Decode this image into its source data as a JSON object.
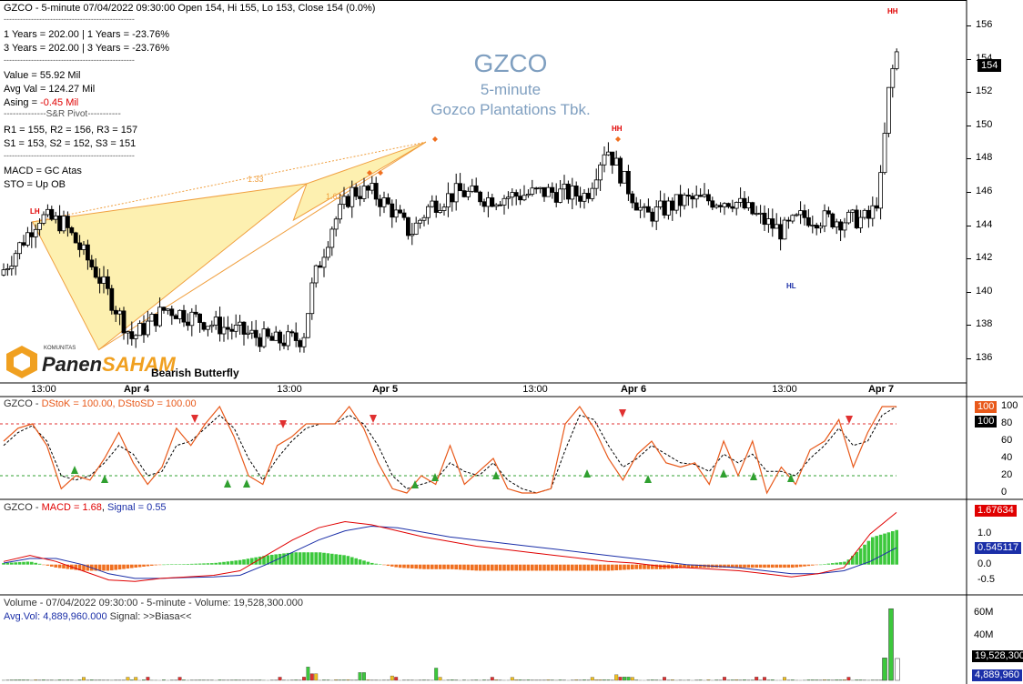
{
  "header": {
    "line": "GZCO - 5-minute 07/04/2022 09:30:00 Open 154, Hi 155, Lo 153, Close 154 (0.0%)"
  },
  "info_lines": [
    "------------------------------------------------",
    "1 Years   = 202.00  |  1 Years   = -23.76%",
    "3 Years   = 202.00  |  3 Years = -23.76%",
    "------------------------------------------------",
    "Value   = 55.92 Mil",
    "Avg Val = 124.27 Mil"
  ],
  "asing": {
    "label": "Asing  = ",
    "value": "-0.45 Mil"
  },
  "pivot": {
    "title": "--------------S&R Pivot-----------",
    "line1": "R1 = 155, R2 = 156, R3 = 157",
    "line2": "S1 = 153, S2 = 152, S3 = 151",
    "sep": "------------------------------------------------"
  },
  "signals": {
    "macd": "MACD =  GC Atas",
    "sto": "STO  =  Up OB"
  },
  "title_block": {
    "ticker": "GZCO",
    "interval": "5-minute",
    "company": "Gozco Plantations Tbk."
  },
  "pattern": {
    "label": "Bearish Butterfly",
    "ratio1": "1.33",
    "ratio2": "1.62"
  },
  "markers": {
    "lh": "LH",
    "hh1": "HH",
    "hh2": "HH",
    "hl": "HL"
  },
  "logo": {
    "small": "KOMUNITAS",
    "part1": "Panen",
    "part2": "SAHAM"
  },
  "price_axis": {
    "ticks": [
      "156",
      "154",
      "152",
      "150",
      "148",
      "146",
      "144",
      "142",
      "140",
      "138",
      "136"
    ],
    "last": "154"
  },
  "time_axis": [
    "13:00",
    "Apr 4",
    "13:00",
    "Apr 5",
    "13:00",
    "Apr 6",
    "13:00",
    "Apr 7"
  ],
  "stoch": {
    "head_ticker": "GZCO - ",
    "head_k": "DStoK = 100.00, DStoSD = 100.00",
    "ticks": [
      "100",
      "80",
      "60",
      "40",
      "20",
      "0"
    ],
    "badge_k": "100",
    "badge_d": "100"
  },
  "macd": {
    "head_ticker": "GZCO - ",
    "head_macd": "MACD = 1.68",
    "head_sep": ", ",
    "head_signal": "Signal = 0.55",
    "ticks": [
      "1.0",
      "0.5",
      "0.0",
      "-0.5"
    ],
    "badge_macd": "1.67634",
    "badge_signal": "0.545117"
  },
  "volume": {
    "line1": "Volume - 07/04/2022 09:30:00 - 5-minute  - Volume: 19,528,300.000",
    "line2_a": "Avg.Vol: 4,889,960.000",
    "line2_b": "  Signal: >>Biasa<<",
    "ticks": [
      "60M",
      "40M"
    ],
    "badge_vol": "19,528,300",
    "badge_avg": "4,889,960"
  },
  "colors": {
    "pattern_fill": "#fdf0b0",
    "pattern_line": "#f0a040",
    "stoch_k": "#e8591a",
    "macd_line": "#e00000",
    "signal_line": "#1b2fa8",
    "hist_pos": "#3cc83c",
    "hist_neg": "#f07020",
    "ob": "#e03030",
    "os": "#30a030"
  },
  "chart_data": {
    "type": "bar",
    "title": "GZCO",
    "subtitle": "5-minute",
    "price_ylim": [
      135,
      157
    ],
    "price_path": [
      {
        "x": 0,
        "y": 141
      },
      {
        "x": 4,
        "y": 144.5
      },
      {
        "x": 6.5,
        "y": 144.1
      },
      {
        "x": 10,
        "y": 141
      },
      {
        "x": 13.5,
        "y": 137.2
      },
      {
        "x": 17,
        "y": 139
      },
      {
        "x": 22,
        "y": 138
      },
      {
        "x": 28,
        "y": 137
      },
      {
        "x": 31,
        "y": 137.2
      },
      {
        "x": 32,
        "y": 140.5
      },
      {
        "x": 34,
        "y": 144
      },
      {
        "x": 36,
        "y": 146
      },
      {
        "x": 38,
        "y": 146
      },
      {
        "x": 40,
        "y": 145
      },
      {
        "x": 42,
        "y": 143.5
      },
      {
        "x": 44,
        "y": 145.2
      },
      {
        "x": 47,
        "y": 146
      },
      {
        "x": 50,
        "y": 145.6
      },
      {
        "x": 53,
        "y": 145.8
      },
      {
        "x": 56,
        "y": 146
      },
      {
        "x": 60,
        "y": 145.8
      },
      {
        "x": 62,
        "y": 148.8
      },
      {
        "x": 64,
        "y": 146.5
      },
      {
        "x": 66,
        "y": 144.5
      },
      {
        "x": 70,
        "y": 145.5
      },
      {
        "x": 75,
        "y": 145.5
      },
      {
        "x": 78,
        "y": 144.3
      },
      {
        "x": 80,
        "y": 143.6
      },
      {
        "x": 82,
        "y": 144.5
      },
      {
        "x": 86,
        "y": 144.3
      },
      {
        "x": 89,
        "y": 144.4
      },
      {
        "x": 90,
        "y": 146
      },
      {
        "x": 91,
        "y": 152.5
      },
      {
        "x": 91.8,
        "y": 154.5
      }
    ],
    "pattern_points_price": [
      {
        "x": 3.5,
        "y": 144.2
      },
      {
        "x": 13.4,
        "y": 136.5
      },
      {
        "x": 44.5,
        "y": 146.5
      },
      {
        "x": 42.5,
        "y": 144.3
      },
      {
        "x": 62.3,
        "y": 149
      }
    ],
    "stoch_k": [
      60,
      75,
      80,
      55,
      5,
      20,
      15,
      40,
      70,
      35,
      10,
      30,
      75,
      55,
      80,
      100,
      65,
      20,
      10,
      55,
      65,
      80,
      80,
      80,
      100,
      75,
      35,
      5,
      0,
      20,
      10,
      55,
      10,
      25,
      40,
      5,
      0,
      0,
      5,
      80,
      100,
      75,
      40,
      15,
      45,
      60,
      35,
      30,
      35,
      10,
      60,
      20,
      60,
      0,
      30,
      10,
      50,
      60,
      85,
      30,
      70,
      100,
      100
    ],
    "stoch_d": [
      55,
      70,
      78,
      60,
      20,
      15,
      20,
      35,
      55,
      45,
      20,
      25,
      55,
      60,
      75,
      90,
      75,
      40,
      15,
      40,
      60,
      75,
      80,
      80,
      90,
      80,
      55,
      20,
      5,
      10,
      15,
      35,
      25,
      20,
      35,
      15,
      5,
      0,
      5,
      50,
      90,
      85,
      55,
      30,
      40,
      55,
      45,
      35,
      33,
      25,
      45,
      35,
      45,
      25,
      25,
      20,
      40,
      55,
      75,
      55,
      60,
      90,
      100
    ],
    "macd": [
      0.1,
      0.3,
      0.1,
      -0.2,
      -0.5,
      -0.55,
      -0.45,
      -0.4,
      -0.35,
      -0.2,
      0.3,
      0.8,
      1.2,
      1.4,
      1.3,
      1.1,
      0.9,
      0.75,
      0.6,
      0.5,
      0.4,
      0.3,
      0.2,
      0.1,
      0.05,
      -0.05,
      -0.1,
      -0.15,
      -0.2,
      -0.3,
      -0.4,
      -0.3,
      -0.1,
      1.0,
      1.7
    ],
    "signal": [
      0.05,
      0.2,
      0.2,
      0.0,
      -0.3,
      -0.45,
      -0.45,
      -0.42,
      -0.4,
      -0.35,
      0.0,
      0.4,
      0.8,
      1.1,
      1.25,
      1.2,
      1.05,
      0.9,
      0.8,
      0.7,
      0.6,
      0.5,
      0.4,
      0.3,
      0.2,
      0.1,
      0.0,
      -0.05,
      -0.1,
      -0.2,
      -0.3,
      -0.3,
      -0.2,
      0.1,
      0.55
    ],
    "volume_last": 19528300,
    "volume_avg": 4889960
  }
}
